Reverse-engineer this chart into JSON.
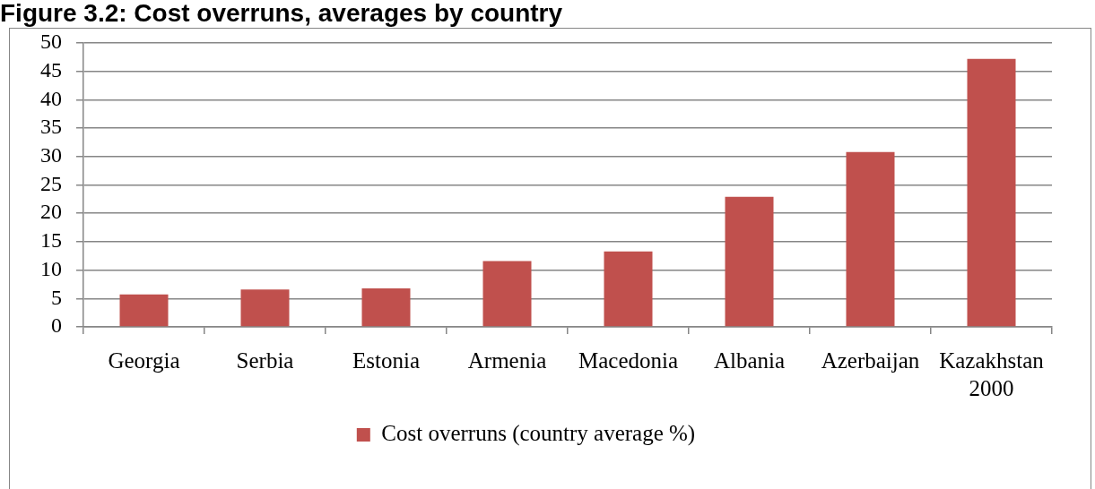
{
  "chart_data": {
    "type": "bar",
    "title": "Figure 3.2: Cost overruns, averages by country",
    "categories": [
      "Georgia",
      "Serbia",
      "Estonia",
      "Armenia",
      "Macedonia",
      "Albania",
      "Azerbaijan",
      "Kazakhstan 2000"
    ],
    "series": [
      {
        "name": "Cost overruns (country average %)",
        "color": "#c0504d",
        "values": [
          5.7,
          6.6,
          6.8,
          11.6,
          13.3,
          22.9,
          30.8,
          47.2
        ]
      }
    ],
    "ylim": [
      0,
      50
    ],
    "yticks": [
      0,
      5,
      10,
      15,
      20,
      25,
      30,
      35,
      40,
      45,
      50
    ],
    "grid": "y",
    "legend": "bottom"
  }
}
